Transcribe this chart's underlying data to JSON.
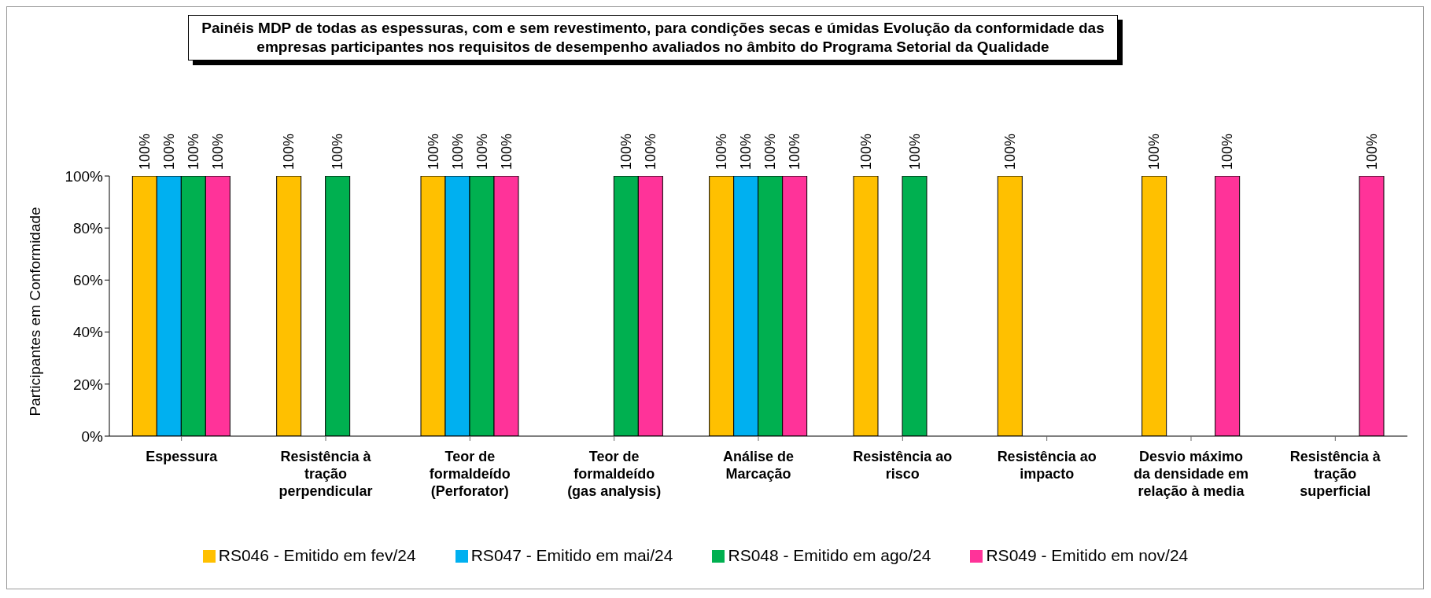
{
  "chart_data": {
    "type": "bar",
    "title": "Painéis MDP de todas as espessuras, com e sem revestimento, para condições secas e úmidas Evolução da conformidade das empresas participantes nos requisitos de desempenho avaliados no âmbito do Programa Setorial da Qualidade",
    "ylabel": "Participantes em Conformidade",
    "categories": [
      "Espessura",
      "Resistência à tração perpendicular",
      "Teor de formaldeído (Perforator)",
      "Teor de formaldeído (gas analysis)",
      "Análise de Marcação",
      "Resistência ao risco",
      "Resistência ao impacto",
      "Desvio máximo da densidade em relação à media",
      "Resistência à tração superficial"
    ],
    "series": [
      {
        "name": "RS046 - Emitido em fev/24",
        "color": "#ffc000",
        "values": [
          100,
          100,
          100,
          null,
          100,
          100,
          100,
          100,
          null
        ],
        "value_labels": [
          "100%",
          "100%",
          "100%",
          null,
          "100%",
          "100%",
          "100%",
          "100%",
          null
        ]
      },
      {
        "name": "RS047 - Emitido em mai/24",
        "color": "#00b0f0",
        "values": [
          100,
          null,
          100,
          null,
          100,
          null,
          null,
          null,
          null
        ],
        "value_labels": [
          "100%",
          null,
          "100%",
          null,
          "100%",
          null,
          null,
          null,
          null
        ]
      },
      {
        "name": "RS048 - Emitido em ago/24",
        "color": "#00b050",
        "values": [
          100,
          100,
          100,
          100,
          100,
          100,
          null,
          null,
          null
        ],
        "value_labels": [
          "100%",
          "100%",
          "100%",
          "100%",
          "100%",
          "100%",
          null,
          null,
          null
        ]
      },
      {
        "name": "RS049 - Emitido em nov/24",
        "color": "#ff3399",
        "values": [
          100,
          null,
          100,
          100,
          100,
          null,
          null,
          100,
          100
        ],
        "value_labels": [
          "100%",
          null,
          "100%",
          "100%",
          "100%",
          null,
          null,
          "100%",
          "100%"
        ]
      }
    ],
    "ylim": [
      0,
      100
    ],
    "yticks": [
      {
        "value": 0,
        "label": "0%"
      },
      {
        "value": 20,
        "label": "20%"
      },
      {
        "value": 40,
        "label": "40%"
      },
      {
        "value": 60,
        "label": "60%"
      },
      {
        "value": 80,
        "label": "80%"
      },
      {
        "value": 100,
        "label": "100%"
      }
    ],
    "legend": "bottom"
  }
}
